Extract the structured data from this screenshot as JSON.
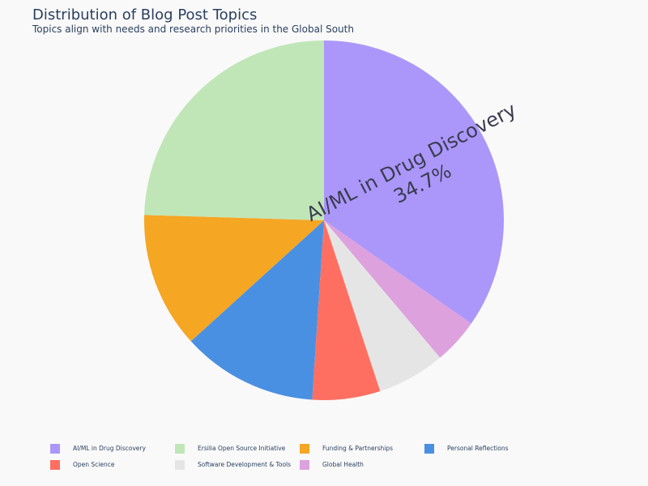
{
  "chart_data": {
    "type": "pie",
    "title": "Distribution of Blog Post Topics",
    "subtitle": "Topics align with needs and research priorities in the Global South",
    "slices": [
      {
        "label": "AI/ML in Drug Discovery",
        "value": 34.7,
        "color": "#ab97fa"
      },
      {
        "label": "Global Health",
        "value": 4.1,
        "color": "#dda1de"
      },
      {
        "label": "Software Development & Tools",
        "value": 6.1,
        "color": "#e5e5e5"
      },
      {
        "label": "Open Science",
        "value": 6.1,
        "color": "#ff6f61"
      },
      {
        "label": "Personal Reflections",
        "value": 12.2,
        "color": "#4a90e2"
      },
      {
        "label": "Funding & Partnerships",
        "value": 12.2,
        "color": "#f5a623"
      },
      {
        "label": "Ersilia Open Source Initiative",
        "value": 24.5,
        "color": "#c0e6b7"
      }
    ],
    "slice_labels": [
      {
        "label": "AI/ML in Drug Discovery",
        "percent": "34.7%"
      }
    ],
    "legend": {
      "placement": "bottom",
      "entries": [
        {
          "label": "AI/ML in Drug Discovery",
          "color": "#ab97fa"
        },
        {
          "label": "Ersilia Open Source Initiative",
          "color": "#c0e6b7"
        },
        {
          "label": "Funding & Partnerships",
          "color": "#f5a623"
        },
        {
          "label": "Personal Reflections",
          "color": "#4a90e2"
        },
        {
          "label": "Open Science",
          "color": "#ff6f61"
        },
        {
          "label": "Software Development & Tools",
          "color": "#e5e5e5"
        },
        {
          "label": "Global Health",
          "color": "#dda1de"
        }
      ]
    }
  }
}
